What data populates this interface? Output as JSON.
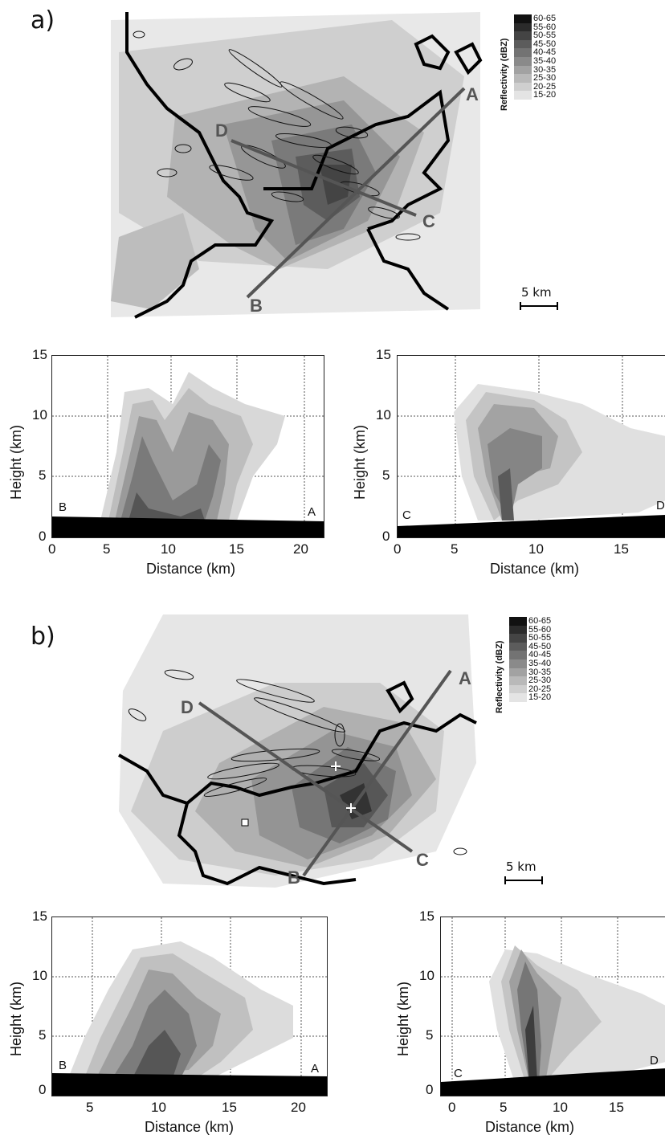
{
  "figure": {
    "panels": [
      {
        "id": "a",
        "label": "a)",
        "legend": {
          "title": "Reflectivity (dBZ)",
          "bins": [
            "60-65",
            "55-60",
            "50-55",
            "45-50",
            "40-45",
            "35-40",
            "30-35",
            "25-30",
            "20-25",
            "15-20"
          ],
          "colors": [
            "#111111",
            "#2b2b2b",
            "#444444",
            "#5c5c5c",
            "#737373",
            "#8a8a8a",
            "#a2a2a2",
            "#b9b9b9",
            "#cfcfcf",
            "#e4e4e4"
          ]
        },
        "section_labels": {
          "A": "A",
          "B": "B",
          "C": "C",
          "D": "D"
        },
        "scale_label": "5 km",
        "cross_sections": [
          {
            "id": "BA",
            "start_label": "B",
            "end_label": "A",
            "x_ticks": [
              "0",
              "5",
              "10",
              "15",
              "20"
            ],
            "y_ticks": [
              "0",
              "5",
              "10",
              "15"
            ],
            "xlabel": "Distance (km)",
            "ylabel": "Height (km)"
          },
          {
            "id": "CD",
            "start_label": "C",
            "end_label": "D",
            "x_ticks": [
              "0",
              "5",
              "10",
              "15"
            ],
            "y_ticks": [
              "0",
              "5",
              "10",
              "15"
            ],
            "xlabel": "Distance (km)",
            "ylabel": "Height (km)"
          }
        ]
      },
      {
        "id": "b",
        "label": "b)",
        "legend": {
          "title": "Reflectivity (dBZ)",
          "bins": [
            "60-65",
            "55-60",
            "50-55",
            "45-50",
            "40-45",
            "35-40",
            "30-35",
            "25-30",
            "20-25",
            "15-20"
          ],
          "colors": [
            "#111111",
            "#2b2b2b",
            "#444444",
            "#5c5c5c",
            "#737373",
            "#8a8a8a",
            "#a2a2a2",
            "#b9b9b9",
            "#cfcfcf",
            "#e4e4e4"
          ]
        },
        "section_labels": {
          "A": "A",
          "B": "B",
          "C": "C",
          "D": "D"
        },
        "scale_label": "5 km",
        "cross_sections": [
          {
            "id": "BA",
            "start_label": "B",
            "end_label": "A",
            "x_ticks": [
              "5",
              "10",
              "15",
              "20"
            ],
            "y_ticks": [
              "0",
              "5",
              "10",
              "15"
            ],
            "xlabel": "Distance (km)",
            "ylabel": "Height (km)"
          },
          {
            "id": "CD",
            "start_label": "C",
            "end_label": "D",
            "x_ticks": [
              "0",
              "5",
              "10",
              "15"
            ],
            "y_ticks": [
              "0",
              "5",
              "10",
              "15"
            ],
            "xlabel": "Distance (km)",
            "ylabel": "Height (km)"
          }
        ]
      }
    ]
  }
}
